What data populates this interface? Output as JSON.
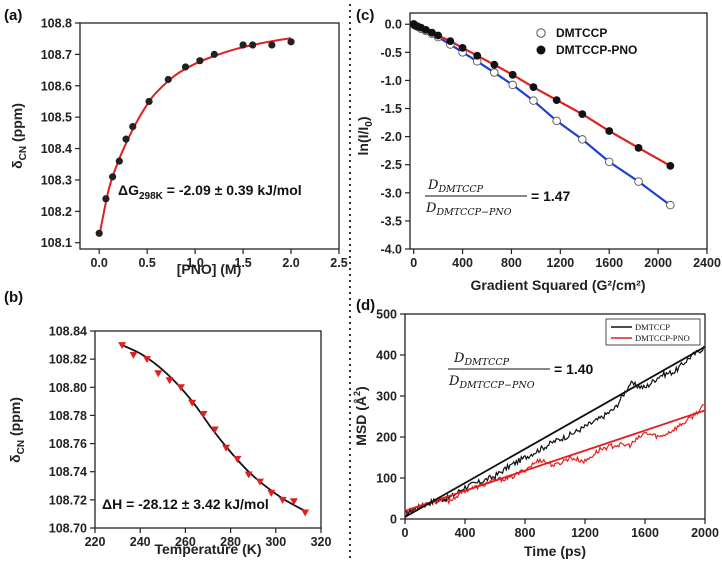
{
  "chart_data": [
    {
      "panel": "(a)",
      "type": "scatter",
      "xlabel": "[PNO] (M)",
      "ylabel": "δCN (ppm)",
      "ylabel_main": "δ",
      "ylabel_sub": "CN",
      "ylabel_tail": " (ppm)",
      "xlim": [
        -0.2,
        2.5
      ],
      "ylim": [
        108.08,
        108.8
      ],
      "xticks": [
        0.0,
        0.5,
        1.0,
        1.5,
        2.0,
        2.5
      ],
      "xtick_labels": [
        "0.0",
        "0.5",
        "1.0",
        "1.5",
        "2.0",
        "2.5"
      ],
      "yticks": [
        108.1,
        108.2,
        108.3,
        108.4,
        108.5,
        108.6,
        108.7,
        108.8
      ],
      "ytick_labels": [
        "108.1",
        "108.2",
        "108.3",
        "108.4",
        "108.5",
        "108.6",
        "108.7",
        "108.8"
      ],
      "series": [
        {
          "name": "data",
          "marker": "circle",
          "color": "#222222",
          "x": [
            0.0,
            0.07,
            0.14,
            0.21,
            0.28,
            0.35,
            0.52,
            0.72,
            0.9,
            1.05,
            1.2,
            1.5,
            1.6,
            1.8,
            2.0
          ],
          "y": [
            108.13,
            108.24,
            108.31,
            108.36,
            108.43,
            108.47,
            108.55,
            108.62,
            108.66,
            108.68,
            108.7,
            108.73,
            108.73,
            108.73,
            108.74
          ]
        },
        {
          "name": "fit",
          "type": "line",
          "color": "#e02020",
          "x": [
            0.0,
            0.1,
            0.2,
            0.3,
            0.4,
            0.5,
            0.6,
            0.8,
            1.0,
            1.2,
            1.4,
            1.6,
            1.8,
            2.0
          ],
          "y": [
            108.12,
            108.27,
            108.36,
            108.43,
            108.49,
            108.54,
            108.58,
            108.635,
            108.67,
            108.695,
            108.715,
            108.73,
            108.742,
            108.752
          ]
        }
      ],
      "annotation_main": "ΔG",
      "annotation_sub": "298K",
      "annotation_tail": " = -2.09 ± 0.39 kJ/mol"
    },
    {
      "panel": "(b)",
      "type": "scatter",
      "xlabel": "Temperature (K)",
      "ylabel": "δCN (ppm)",
      "ylabel_main": "δ",
      "ylabel_sub": "CN",
      "ylabel_tail": " (ppm)",
      "xlim": [
        220,
        320
      ],
      "ylim": [
        108.7,
        108.84
      ],
      "xticks": [
        220,
        240,
        260,
        280,
        300,
        320
      ],
      "xtick_labels": [
        "220",
        "240",
        "260",
        "280",
        "300",
        "320"
      ],
      "yticks": [
        108.7,
        108.72,
        108.74,
        108.76,
        108.78,
        108.8,
        108.82,
        108.84
      ],
      "ytick_labels": [
        "108.70",
        "108.72",
        "108.74",
        "108.76",
        "108.78",
        "108.80",
        "108.82",
        "108.84"
      ],
      "series": [
        {
          "name": "data",
          "marker": "triangle-down",
          "color": "#e02020",
          "x": [
            232,
            237,
            243,
            248,
            253,
            258,
            263,
            268,
            273,
            278,
            283,
            288,
            293,
            298,
            303,
            308,
            313
          ],
          "y": [
            108.83,
            108.823,
            108.82,
            108.81,
            108.805,
            108.8,
            108.789,
            108.781,
            108.77,
            108.757,
            108.749,
            108.738,
            108.733,
            108.725,
            108.72,
            108.719,
            108.711
          ]
        },
        {
          "name": "fit",
          "type": "line",
          "color": "#111111",
          "x": [
            232,
            240,
            248,
            256,
            264,
            272,
            280,
            288,
            296,
            304,
            313
          ],
          "y": [
            108.83,
            108.824,
            108.815,
            108.803,
            108.788,
            108.77,
            108.754,
            108.74,
            108.729,
            108.72,
            108.712
          ]
        }
      ],
      "annotation": "ΔH = -28.12 ± 3.42 kJ/mol"
    },
    {
      "panel": "(c)",
      "type": "scatter",
      "xlabel": "Gradient Squared (G²/cm²)",
      "ylabel": "ln(I/I₀)",
      "ylabel_main": "ln(I/I",
      "ylabel_sub": "0",
      "ylabel_tail": ")",
      "xlim": [
        -30,
        2400
      ],
      "ylim": [
        -4.0,
        0.2
      ],
      "xticks": [
        0,
        400,
        800,
        1200,
        1600,
        2000,
        2400
      ],
      "xtick_labels": [
        "0",
        "400",
        "800",
        "1200",
        "1600",
        "2000",
        "2400"
      ],
      "yticks": [
        0.0,
        -0.5,
        -1.0,
        -1.5,
        -2.0,
        -2.5,
        -3.0,
        -3.5,
        -4.0
      ],
      "ytick_labels": [
        "0.0",
        "-0.5",
        "-1.0",
        "-1.5",
        "-2.0",
        "-2.5",
        "-3.0",
        "-3.5",
        "-4.0"
      ],
      "series": [
        {
          "name": "DMTCCP",
          "marker": "open-circle",
          "line_color": "#1f3fd6",
          "x": [
            0,
            10,
            30,
            60,
            100,
            150,
            200,
            300,
            400,
            520,
            660,
            810,
            980,
            1170,
            1380,
            1600,
            1840,
            2100
          ],
          "y": [
            0.0,
            -0.02,
            -0.04,
            -0.08,
            -0.12,
            -0.17,
            -0.23,
            -0.36,
            -0.5,
            -0.66,
            -0.86,
            -1.08,
            -1.36,
            -1.72,
            -2.05,
            -2.45,
            -2.8,
            -3.22
          ]
        },
        {
          "name": "DMTCCP-PNO",
          "marker": "filled-circle",
          "line_color": "#e02020",
          "x": [
            0,
            10,
            30,
            60,
            100,
            150,
            200,
            300,
            400,
            520,
            660,
            810,
            980,
            1170,
            1380,
            1600,
            1840,
            2100
          ],
          "y": [
            0.0,
            -0.02,
            -0.04,
            -0.06,
            -0.1,
            -0.15,
            -0.2,
            -0.3,
            -0.42,
            -0.56,
            -0.72,
            -0.9,
            -1.12,
            -1.35,
            -1.6,
            -1.9,
            -2.2,
            -2.52
          ]
        }
      ],
      "legend": [
        "DMTCCP",
        "DMTCCP-PNO"
      ],
      "ratio_numerator": "D",
      "ratio_numerator_sub": "DMTCCP",
      "ratio_denominator": "D",
      "ratio_denominator_sub": "DMTCCP−PNO",
      "ratio_value": "= 1.47"
    },
    {
      "panel": "(d)",
      "type": "line",
      "xlabel": "Time (ps)",
      "ylabel": "MSD (Å²)",
      "ylabel_main": "MSD (Å",
      "ylabel_sup": "2",
      "ylabel_tail": ")",
      "xlim": [
        0,
        2000
      ],
      "ylim": [
        0,
        500
      ],
      "xticks": [
        0,
        400,
        800,
        1200,
        1600,
        2000
      ],
      "xtick_labels": [
        "0",
        "400",
        "800",
        "1200",
        "1600",
        "2000"
      ],
      "yticks": [
        0,
        100,
        200,
        300,
        400,
        500
      ],
      "ytick_labels": [
        "0",
        "100",
        "200",
        "300",
        "400",
        "500"
      ],
      "series": [
        {
          "name": "DMTCCP",
          "color": "#111111",
          "x": [
            0,
            100,
            200,
            300,
            400,
            500,
            600,
            700,
            800,
            900,
            1000,
            1100,
            1200,
            1300,
            1400,
            1500,
            1600,
            1700,
            1800,
            1900,
            2000
          ],
          "y": [
            12,
            30,
            45,
            52,
            78,
            90,
            105,
            130,
            150,
            170,
            190,
            205,
            225,
            245,
            270,
            330,
            320,
            350,
            360,
            395,
            420
          ]
        },
        {
          "name": "DMTCCP-PNO",
          "color": "#e02020",
          "x": [
            0,
            100,
            200,
            300,
            400,
            500,
            600,
            700,
            800,
            900,
            1000,
            1100,
            1200,
            1300,
            1400,
            1500,
            1600,
            1700,
            1800,
            1900,
            2000
          ],
          "y": [
            12,
            35,
            42,
            45,
            70,
            80,
            95,
            100,
            120,
            145,
            130,
            150,
            140,
            170,
            180,
            180,
            210,
            200,
            220,
            245,
            278
          ]
        }
      ],
      "fits": [
        {
          "name": "DMTCCP fit",
          "color": "#111111",
          "x": [
            0,
            2000
          ],
          "y": [
            5,
            420
          ]
        },
        {
          "name": "DMTCCP-PNO fit",
          "color": "#e02020",
          "x": [
            0,
            2000
          ],
          "y": [
            20,
            265
          ]
        }
      ],
      "legend": [
        "DMTCCP",
        "DMTCCP-PNO"
      ],
      "ratio_numerator": "D",
      "ratio_numerator_sub": "DMTCCP",
      "ratio_denominator": "D",
      "ratio_denominator_sub": "DMTCCP−PNO",
      "ratio_value": "= 1.40"
    }
  ]
}
